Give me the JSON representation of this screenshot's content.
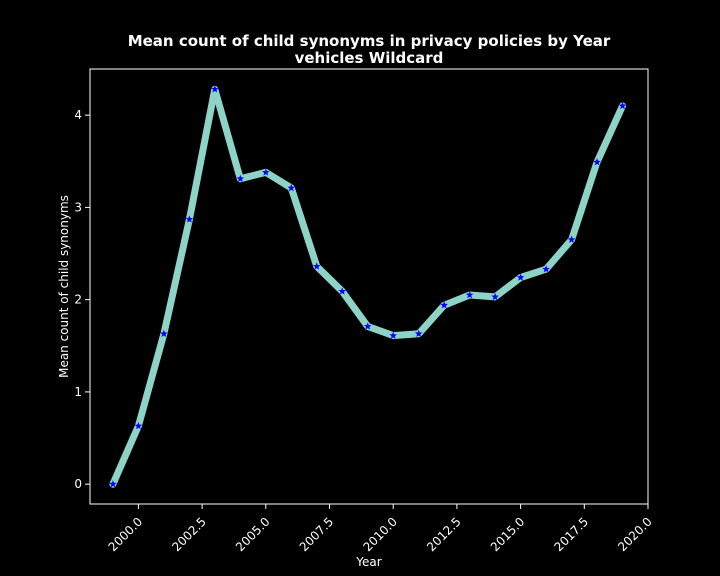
{
  "chart_data": {
    "type": "line",
    "title_line1": "Mean count of child synonyms in privacy policies by Year",
    "title_line2": "vehicles Wildcard",
    "xlabel": "Year",
    "ylabel": "Mean count of child synonyms",
    "xlim": [
      1998.1,
      2020.0
    ],
    "ylim": [
      -0.215,
      4.5
    ],
    "xticks": [
      2000.0,
      2002.5,
      2005.0,
      2007.5,
      2010.0,
      2012.5,
      2015.0,
      2017.5,
      2020.0
    ],
    "xtick_labels": [
      "2000.0",
      "2002.5",
      "2005.0",
      "2007.5",
      "2010.0",
      "2012.5",
      "2015.0",
      "2017.5",
      "2020.0"
    ],
    "yticks": [
      0,
      1,
      2,
      3,
      4
    ],
    "ytick_labels": [
      "0",
      "1",
      "2",
      "3",
      "4"
    ],
    "grid": false,
    "series": [
      {
        "line_color": "#8dd3c7",
        "marker_color": "#0000ff",
        "marker": "star",
        "x": [
          1999,
          2000,
          2001,
          2002,
          2003,
          2004,
          2005,
          2006,
          2007,
          2008,
          2009,
          2010,
          2011,
          2012,
          2013,
          2014,
          2015,
          2016,
          2017,
          2018,
          2019
        ],
        "y": [
          0.0,
          0.63,
          1.63,
          2.87,
          4.28,
          3.31,
          3.38,
          3.21,
          2.36,
          2.09,
          1.71,
          1.61,
          1.63,
          1.94,
          2.05,
          2.03,
          2.24,
          2.33,
          2.65,
          3.49,
          4.1
        ]
      }
    ]
  }
}
